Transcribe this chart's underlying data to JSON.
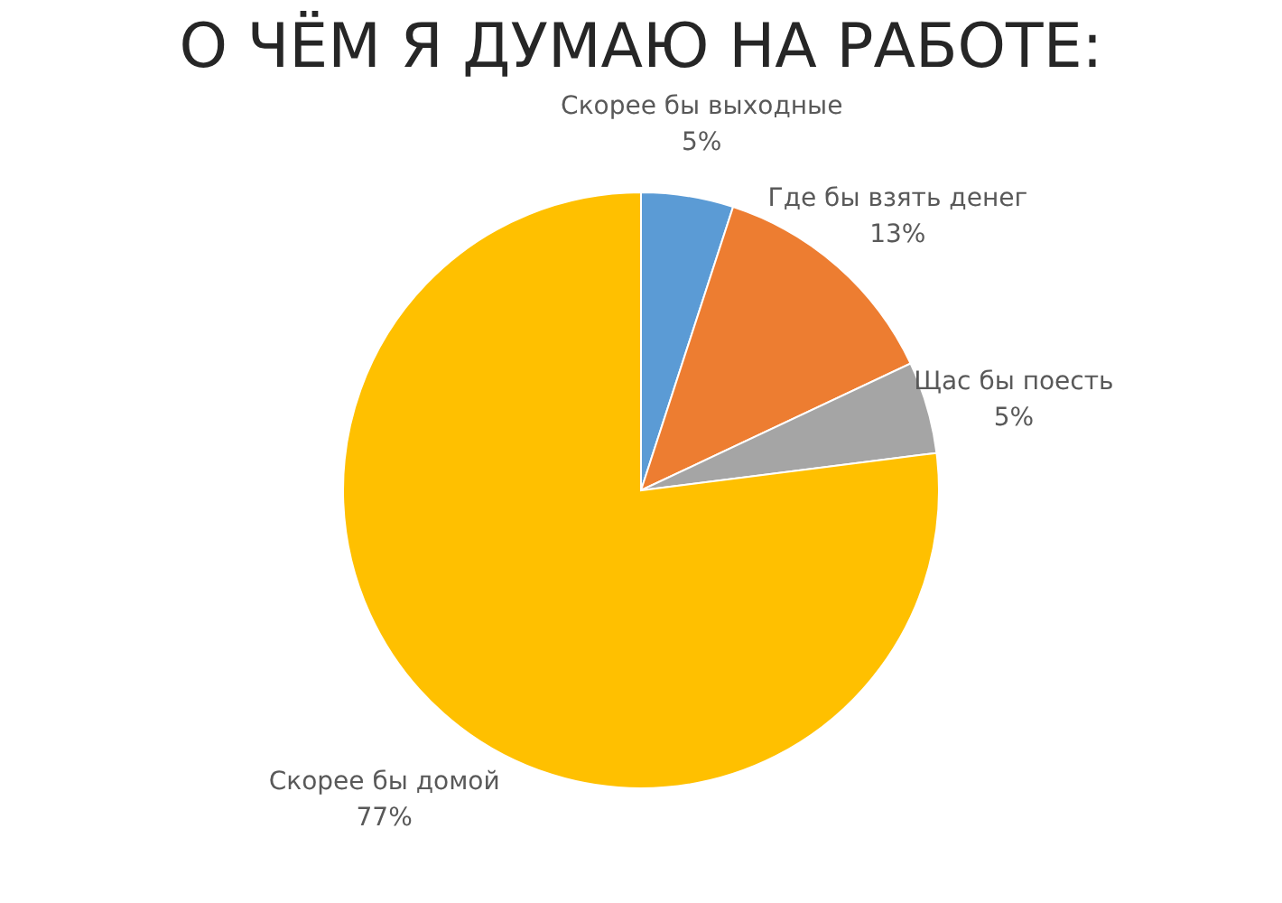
{
  "chart_data": {
    "type": "pie",
    "title": "О ЧЁМ Я ДУМАЮ НА РАБОТЕ:",
    "categories": [
      "Скорее бы выходные",
      "Где бы взять денег",
      "Щас бы поесть",
      "Скорее бы домой"
    ],
    "values": [
      5,
      13,
      5,
      77
    ],
    "colors": [
      "#5b9bd5",
      "#ed7d31",
      "#a5a5a5",
      "#ffc000"
    ],
    "value_labels": [
      "5%",
      "13%",
      "5%",
      "77%"
    ],
    "legend": false
  }
}
